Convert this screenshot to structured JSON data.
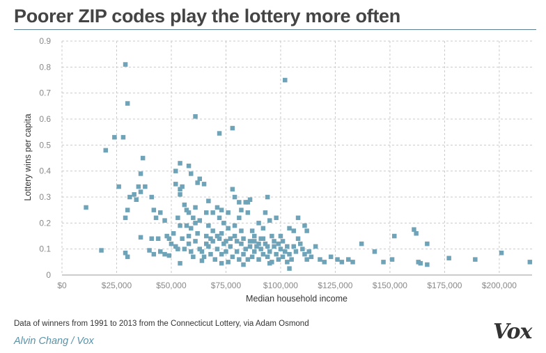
{
  "header": {
    "title": "Poorer ZIP codes play the lottery more often"
  },
  "footer": {
    "source": "Data of winners from 1991 to 2013 from the Connecticut Lottery, via Adam Osmond",
    "author": "Alvin Chang",
    "separator": "/",
    "publication": "Vox",
    "logo": "Vox"
  },
  "colors": {
    "marker": "#6fa3b8",
    "grid": "#c9c9c9",
    "title_rule": "#5a7f92"
  },
  "chart_data": {
    "type": "scatter",
    "title": "Poorer ZIP codes play the lottery more often",
    "xlabel": "Median household income",
    "ylabel": "Lottery wins per capita",
    "xlim": [
      0,
      215000
    ],
    "ylim": [
      0,
      0.9
    ],
    "grid": true,
    "xticks": [
      0,
      25000,
      50000,
      75000,
      100000,
      125000,
      150000,
      175000,
      200000
    ],
    "xtick_labels": [
      "$0",
      "$25,000",
      "$50,000",
      "$75,000",
      "$100,000",
      "$125,000",
      "$150,000",
      "$175,000",
      "$200,000"
    ],
    "yticks": [
      0,
      0.1,
      0.2,
      0.3,
      0.4,
      0.5,
      0.6,
      0.7,
      0.8,
      0.9
    ],
    "ytick_labels": [
      "0",
      "0.1",
      "0.2",
      "0.3",
      "0.4",
      "0.5",
      "0.6",
      "0.7",
      "0.8",
      "0.9"
    ],
    "points": [
      [
        29000,
        0.81
      ],
      [
        30000,
        0.66
      ],
      [
        24000,
        0.53
      ],
      [
        28000,
        0.53
      ],
      [
        20000,
        0.48
      ],
      [
        11000,
        0.26
      ],
      [
        18000,
        0.095
      ],
      [
        26000,
        0.34
      ],
      [
        31000,
        0.3
      ],
      [
        33000,
        0.31
      ],
      [
        30000,
        0.25
      ],
      [
        29000,
        0.22
      ],
      [
        30000,
        0.07
      ],
      [
        29000,
        0.085
      ],
      [
        37000,
        0.45
      ],
      [
        36000,
        0.39
      ],
      [
        35000,
        0.34
      ],
      [
        38000,
        0.34
      ],
      [
        36000,
        0.32
      ],
      [
        34000,
        0.29
      ],
      [
        41000,
        0.3
      ],
      [
        42000,
        0.25
      ],
      [
        43000,
        0.22
      ],
      [
        45000,
        0.24
      ],
      [
        47000,
        0.21
      ],
      [
        41000,
        0.14
      ],
      [
        44000,
        0.14
      ],
      [
        36000,
        0.145
      ],
      [
        40000,
        0.095
      ],
      [
        42000,
        0.08
      ],
      [
        47000,
        0.08
      ],
      [
        49000,
        0.075
      ],
      [
        61000,
        0.61
      ],
      [
        72000,
        0.545
      ],
      [
        78000,
        0.565
      ],
      [
        102000,
        0.75
      ],
      [
        52000,
        0.4
      ],
      [
        54000,
        0.43
      ],
      [
        58000,
        0.42
      ],
      [
        59000,
        0.39
      ],
      [
        52000,
        0.35
      ],
      [
        55000,
        0.34
      ],
      [
        54000,
        0.33
      ],
      [
        54000,
        0.31
      ],
      [
        62000,
        0.355
      ],
      [
        63000,
        0.37
      ],
      [
        65000,
        0.35
      ],
      [
        56000,
        0.27
      ],
      [
        57000,
        0.25
      ],
      [
        58000,
        0.24
      ],
      [
        61000,
        0.26
      ],
      [
        60000,
        0.22
      ],
      [
        67000,
        0.285
      ],
      [
        66000,
        0.24
      ],
      [
        69000,
        0.24
      ],
      [
        71000,
        0.26
      ],
      [
        73000,
        0.25
      ],
      [
        72000,
        0.22
      ],
      [
        78000,
        0.33
      ],
      [
        79000,
        0.3
      ],
      [
        76000,
        0.24
      ],
      [
        81000,
        0.28
      ],
      [
        82000,
        0.25
      ],
      [
        84000,
        0.28
      ],
      [
        86000,
        0.29
      ],
      [
        85000,
        0.28
      ],
      [
        85000,
        0.24
      ],
      [
        81000,
        0.22
      ],
      [
        94000,
        0.3
      ],
      [
        93000,
        0.24
      ],
      [
        98000,
        0.22
      ],
      [
        108000,
        0.22
      ],
      [
        90000,
        0.2
      ],
      [
        92000,
        0.18
      ],
      [
        95000,
        0.21
      ],
      [
        53000,
        0.22
      ],
      [
        54000,
        0.19
      ],
      [
        57000,
        0.19
      ],
      [
        59000,
        0.18
      ],
      [
        61000,
        0.2
      ],
      [
        63000,
        0.21
      ],
      [
        67000,
        0.19
      ],
      [
        69000,
        0.17
      ],
      [
        74000,
        0.2
      ],
      [
        76000,
        0.18
      ],
      [
        79000,
        0.19
      ],
      [
        82000,
        0.17
      ],
      [
        87000,
        0.17
      ],
      [
        88000,
        0.15
      ],
      [
        91000,
        0.14
      ],
      [
        96000,
        0.15
      ],
      [
        100000,
        0.15
      ],
      [
        104000,
        0.18
      ],
      [
        106000,
        0.17
      ],
      [
        111000,
        0.19
      ],
      [
        112000,
        0.17
      ],
      [
        48000,
        0.15
      ],
      [
        50000,
        0.12
      ],
      [
        52000,
        0.11
      ],
      [
        55000,
        0.14
      ],
      [
        56000,
        0.1
      ],
      [
        58000,
        0.12
      ],
      [
        59000,
        0.09
      ],
      [
        60000,
        0.07
      ],
      [
        61000,
        0.13
      ],
      [
        63000,
        0.1
      ],
      [
        64000,
        0.09
      ],
      [
        65000,
        0.07
      ],
      [
        66000,
        0.12
      ],
      [
        67000,
        0.11
      ],
      [
        68000,
        0.08
      ],
      [
        69000,
        0.13
      ],
      [
        70000,
        0.06
      ],
      [
        71000,
        0.1
      ],
      [
        72000,
        0.14
      ],
      [
        73000,
        0.08
      ],
      [
        74000,
        0.12
      ],
      [
        75000,
        0.09
      ],
      [
        76000,
        0.05
      ],
      [
        77000,
        0.11
      ],
      [
        78000,
        0.07
      ],
      [
        79000,
        0.15
      ],
      [
        80000,
        0.09
      ],
      [
        81000,
        0.06
      ],
      [
        82000,
        0.12
      ],
      [
        83000,
        0.08
      ],
      [
        84000,
        0.1
      ],
      [
        85000,
        0.06
      ],
      [
        86000,
        0.13
      ],
      [
        87000,
        0.07
      ],
      [
        88000,
        0.09
      ],
      [
        89000,
        0.11
      ],
      [
        90000,
        0.06
      ],
      [
        91000,
        0.1
      ],
      [
        92000,
        0.08
      ],
      [
        93000,
        0.12
      ],
      [
        94000,
        0.07
      ],
      [
        95000,
        0.09
      ],
      [
        96000,
        0.05
      ],
      [
        97000,
        0.11
      ],
      [
        98000,
        0.08
      ],
      [
        99000,
        0.06
      ],
      [
        100000,
        0.1
      ],
      [
        101000,
        0.07
      ],
      [
        102000,
        0.09
      ],
      [
        103000,
        0.05
      ],
      [
        104000,
        0.08
      ],
      [
        105000,
        0.06
      ],
      [
        106000,
        0.11
      ],
      [
        107000,
        0.09
      ],
      [
        108000,
        0.14
      ],
      [
        109000,
        0.12
      ],
      [
        110000,
        0.1
      ],
      [
        111000,
        0.08
      ],
      [
        112000,
        0.06
      ],
      [
        113000,
        0.09
      ],
      [
        114000,
        0.07
      ],
      [
        116000,
        0.11
      ],
      [
        118000,
        0.06
      ],
      [
        120000,
        0.05
      ],
      [
        123000,
        0.07
      ],
      [
        126000,
        0.06
      ],
      [
        128000,
        0.05
      ],
      [
        131000,
        0.06
      ],
      [
        133000,
        0.05
      ],
      [
        137000,
        0.12
      ],
      [
        143000,
        0.09
      ],
      [
        147000,
        0.05
      ],
      [
        151000,
        0.06
      ],
      [
        152000,
        0.15
      ],
      [
        161000,
        0.175
      ],
      [
        162000,
        0.16
      ],
      [
        163000,
        0.05
      ],
      [
        164000,
        0.045
      ],
      [
        167000,
        0.12
      ],
      [
        167000,
        0.04
      ],
      [
        177000,
        0.065
      ],
      [
        189000,
        0.06
      ],
      [
        201000,
        0.085
      ],
      [
        214000,
        0.05
      ],
      [
        104000,
        0.025
      ],
      [
        95000,
        0.045
      ],
      [
        83000,
        0.04
      ],
      [
        73000,
        0.045
      ],
      [
        64000,
        0.055
      ],
      [
        54000,
        0.045
      ],
      [
        45000,
        0.09
      ],
      [
        49000,
        0.14
      ],
      [
        51000,
        0.16
      ],
      [
        53000,
        0.1
      ],
      [
        58000,
        0.15
      ],
      [
        62000,
        0.16
      ],
      [
        66000,
        0.15
      ],
      [
        68000,
        0.14
      ],
      [
        71000,
        0.15
      ],
      [
        73000,
        0.16
      ],
      [
        75000,
        0.13
      ],
      [
        77000,
        0.14
      ],
      [
        80000,
        0.13
      ],
      [
        83000,
        0.14
      ],
      [
        86000,
        0.11
      ],
      [
        88000,
        0.13
      ],
      [
        90000,
        0.12
      ],
      [
        92000,
        0.14
      ],
      [
        94000,
        0.11
      ],
      [
        97000,
        0.13
      ],
      [
        99000,
        0.12
      ],
      [
        101000,
        0.13
      ],
      [
        103000,
        0.11
      ]
    ]
  }
}
